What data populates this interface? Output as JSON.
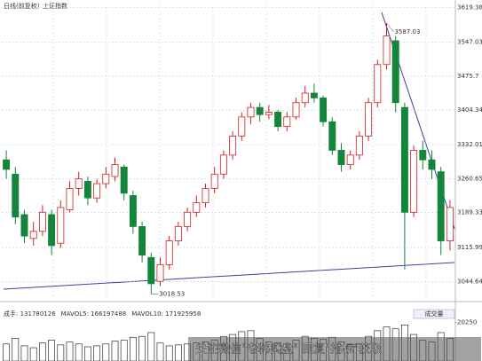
{
  "chart_data": [
    {
      "type": "candlestick",
      "title": "日线(前复权)",
      "subtitle": "上证指数",
      "open": [
        3300,
        3270,
        3185,
        3135,
        3150,
        3185,
        3125,
        3195,
        3240,
        3255,
        3220,
        3250,
        3265,
        3285,
        3225,
        3160,
        3095,
        3045,
        3080,
        3130,
        3160,
        3190,
        3210,
        3240,
        3270,
        3310,
        3350,
        3390,
        3410,
        3395,
        3400,
        3370,
        3390,
        3420,
        3440,
        3430,
        3380,
        3320,
        3290,
        3310,
        3350,
        3420,
        3500,
        3550,
        3410,
        3190,
        3320,
        3300,
        3275,
        3130
      ],
      "high": [
        3320,
        3285,
        3195,
        3170,
        3205,
        3195,
        3215,
        3255,
        3275,
        3265,
        3260,
        3285,
        3305,
        3290,
        3235,
        3170,
        3105,
        3095,
        3140,
        3170,
        3200,
        3225,
        3250,
        3285,
        3320,
        3360,
        3400,
        3420,
        3420,
        3415,
        3405,
        3400,
        3430,
        3455,
        3460,
        3435,
        3390,
        3335,
        3320,
        3360,
        3430,
        3510,
        3587.03,
        3560,
        3420,
        3330,
        3340,
        3320,
        3285,
        3215
      ],
      "low": [
        3260,
        3165,
        3125,
        3120,
        3140,
        3100,
        3115,
        3190,
        3225,
        3205,
        3210,
        3240,
        3255,
        3215,
        3145,
        3085,
        3018.53,
        3035,
        3070,
        3120,
        3150,
        3180,
        3200,
        3230,
        3260,
        3300,
        3340,
        3375,
        3380,
        3385,
        3360,
        3360,
        3385,
        3410,
        3420,
        3370,
        3310,
        3275,
        3280,
        3300,
        3340,
        3410,
        3490,
        3400,
        3070,
        3180,
        3280,
        3260,
        3100,
        3110
      ],
      "close": [
        3280,
        3180,
        3140,
        3150,
        3190,
        3120,
        3200,
        3240,
        3260,
        3220,
        3250,
        3270,
        3290,
        3230,
        3160,
        3100,
        3040,
        3080,
        3130,
        3160,
        3190,
        3210,
        3240,
        3270,
        3310,
        3350,
        3390,
        3410,
        3395,
        3400,
        3370,
        3390,
        3420,
        3440,
        3430,
        3380,
        3320,
        3290,
        3310,
        3350,
        3420,
        3500,
        3560,
        3420,
        3190,
        3320,
        3300,
        3280,
        3130,
        3200
      ],
      "up_color": "#d42020",
      "down_color": "#14853a",
      "ylim": [
        3010,
        3628
      ],
      "yticks": [
        3619.38,
        3547.03,
        3475.7,
        3404.34,
        3332.01,
        3260.65,
        3189.33,
        3115.99,
        3044.64
      ],
      "grid": true
    },
    {
      "type": "bar",
      "title": "成交量",
      "info": [
        "成手: 131780126",
        "MAVOL5: 166197488",
        "MAVOL10: 171925958"
      ],
      "values": [
        9000,
        12000,
        8000,
        7000,
        9500,
        11000,
        8500,
        10000,
        9000,
        7500,
        8000,
        9000,
        10500,
        11000,
        12500,
        13000,
        15000,
        9500,
        8000,
        8500,
        9000,
        9500,
        10000,
        11000,
        13000,
        14000,
        15500,
        16000,
        12000,
        10000,
        9500,
        9000,
        11000,
        13000,
        12000,
        11500,
        12500,
        10000,
        8500,
        9000,
        13000,
        16000,
        18000,
        17000,
        19000,
        14000,
        11000,
        10000,
        15000,
        12000
      ],
      "color": "#333333",
      "ylim": [
        0,
        22000
      ],
      "yticks": [
        20250
      ]
    }
  ],
  "watermark": "关注微信\"老韩实盘\" 回复\"指标\"获取"
}
